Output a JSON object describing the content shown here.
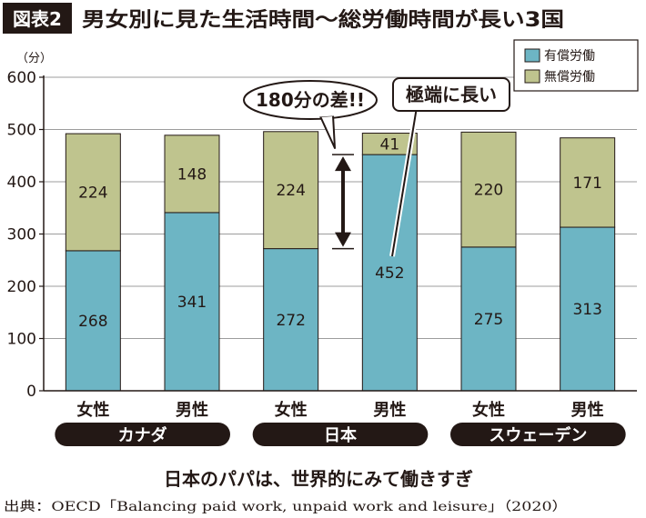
{
  "header": {
    "badge": "図表2",
    "title": "男女別に見た生活時間〜総労働時間が長い3国"
  },
  "chart_data": {
    "type": "bar",
    "stacked": true,
    "ylabel": "（分）",
    "ylim": [
      0,
      600
    ],
    "yticks": [
      0,
      100,
      200,
      300,
      400,
      500,
      600
    ],
    "grid": true,
    "legend_position": "top-right",
    "categories": [
      "女性",
      "男性",
      "女性",
      "男性",
      "女性",
      "男性"
    ],
    "groups": [
      {
        "label": "カナダ",
        "span": [
          0,
          1
        ]
      },
      {
        "label": "日本",
        "span": [
          2,
          3
        ]
      },
      {
        "label": "スウェーデン",
        "span": [
          4,
          5
        ]
      }
    ],
    "series": [
      {
        "name": "有償労働",
        "color": "#6db5c4",
        "values": [
          268,
          341,
          272,
          452,
          275,
          313
        ]
      },
      {
        "name": "無償労働",
        "color": "#bfc48e",
        "values": [
          224,
          148,
          224,
          41,
          220,
          171
        ]
      }
    ],
    "annotations": {
      "difference": {
        "text": "180分の差!!",
        "from": 272,
        "to": 452,
        "between": [
          2,
          3
        ]
      },
      "pointer": {
        "text": "極端に長い",
        "target_bar": 3
      }
    }
  },
  "caption": "日本のパパは、世界的にみて働きすぎ",
  "source": "出典：OECD「Balancing paid work, unpaid work and leisure」（2020）"
}
